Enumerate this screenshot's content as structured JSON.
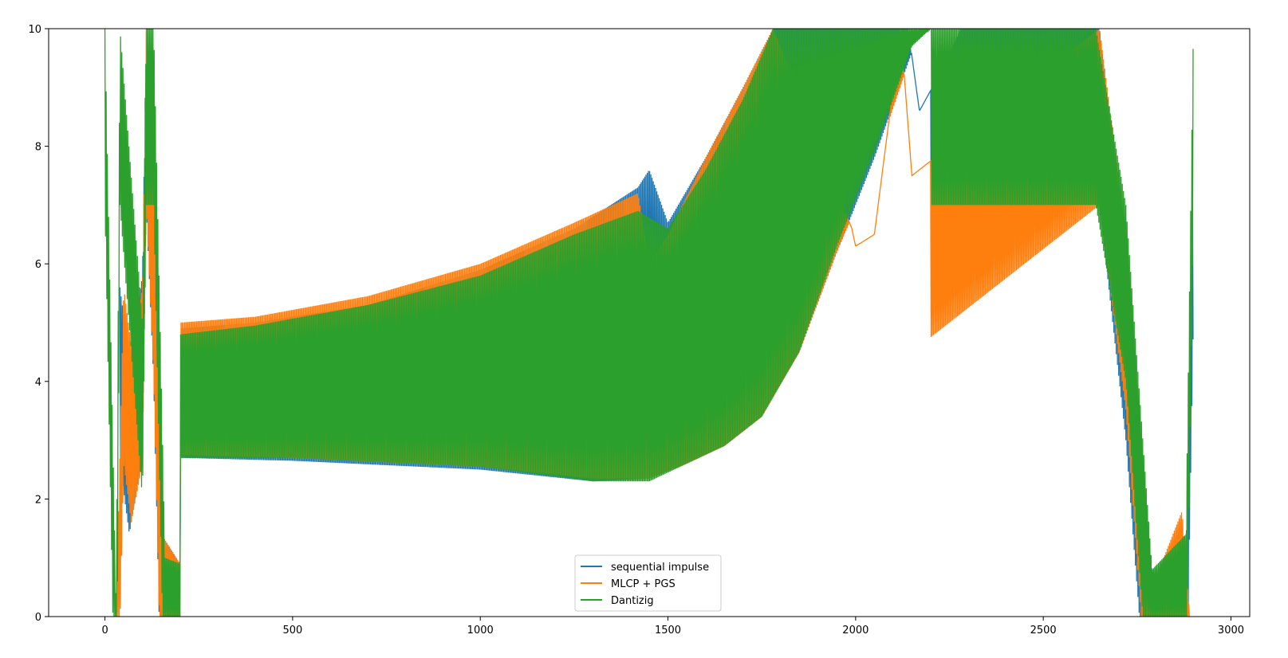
{
  "chart_data": {
    "type": "line",
    "title": "",
    "xlabel": "",
    "ylabel": "",
    "xlim": [
      -150,
      3050
    ],
    "ylim": [
      0,
      10
    ],
    "x_ticks": [
      0,
      500,
      1000,
      1500,
      2000,
      2500,
      3000
    ],
    "y_ticks": [
      0,
      2,
      4,
      6,
      8,
      10
    ],
    "grid": false,
    "legend_position": "bottom-center",
    "series": [
      {
        "name": "sequential impulse",
        "color": "#1f77b4",
        "band_upper": [
          [
            40,
            5.6
          ],
          [
            65,
            4.4
          ],
          [
            100,
            5.8
          ],
          [
            110,
            10
          ],
          [
            130,
            7
          ],
          [
            150,
            1.4
          ],
          [
            200,
            0.9
          ],
          [
            200,
            4.9
          ],
          [
            400,
            5.0
          ],
          [
            700,
            5.3
          ],
          [
            1000,
            5.9
          ],
          [
            1250,
            6.6
          ],
          [
            1420,
            7.3
          ],
          [
            1450,
            7.6
          ],
          [
            1500,
            6.7
          ],
          [
            1600,
            7.8
          ],
          [
            1700,
            9.0
          ],
          [
            1780,
            10
          ],
          [
            2140,
            10
          ],
          [
            2170,
            8.6
          ],
          [
            2230,
            9.3
          ],
          [
            2280,
            10
          ],
          [
            2650,
            10
          ],
          [
            2720,
            6.0
          ],
          [
            2780,
            1.0
          ],
          [
            2800,
            0.6
          ],
          [
            2880,
            0.9
          ],
          [
            2900,
            8.0
          ]
        ],
        "band_lower": [
          [
            200,
            2.7
          ],
          [
            500,
            2.65
          ],
          [
            1000,
            2.5
          ],
          [
            1300,
            2.3
          ],
          [
            1450,
            2.35
          ],
          [
            1550,
            2.65
          ],
          [
            1650,
            2.9
          ],
          [
            1750,
            3.4
          ],
          [
            1850,
            4.5
          ],
          [
            1950,
            6.2
          ],
          [
            2050,
            7.8
          ],
          [
            2150,
            9.6
          ],
          [
            2200,
            10
          ]
        ]
      },
      {
        "name": "MLCP + PGS",
        "color": "#ff7f0e",
        "band_upper": [
          [
            30,
            0
          ],
          [
            50,
            5.6
          ],
          [
            70,
            4.6
          ],
          [
            100,
            5.6
          ],
          [
            110,
            10
          ],
          [
            130,
            7
          ],
          [
            150,
            1.4
          ],
          [
            200,
            0.9
          ],
          [
            200,
            5.0
          ],
          [
            400,
            5.1
          ],
          [
            700,
            5.45
          ],
          [
            1000,
            6.0
          ],
          [
            1250,
            6.7
          ],
          [
            1420,
            7.2
          ],
          [
            1450,
            6.0
          ],
          [
            1500,
            6.5
          ],
          [
            1600,
            7.8
          ],
          [
            1700,
            9.0
          ],
          [
            1780,
            10
          ],
          [
            2120,
            10
          ],
          [
            2150,
            7.5
          ],
          [
            2050,
            6.5
          ],
          [
            2000,
            6.3
          ],
          [
            1990,
            6.6
          ],
          [
            2650,
            10
          ],
          [
            2720,
            6.5
          ],
          [
            2790,
            0.5
          ],
          [
            2870,
            1.8
          ],
          [
            2890,
            0
          ]
        ],
        "band_lower": [
          [
            200,
            2.75
          ],
          [
            500,
            2.7
          ],
          [
            1000,
            2.55
          ],
          [
            1300,
            2.35
          ],
          [
            1450,
            2.35
          ],
          [
            1550,
            2.6
          ],
          [
            1650,
            2.9
          ],
          [
            1750,
            3.4
          ],
          [
            1850,
            4.5
          ],
          [
            1950,
            6.2
          ],
          [
            2050,
            7.7
          ],
          [
            2150,
            9.6
          ],
          [
            2200,
            10
          ]
        ]
      },
      {
        "name": "Dantizig",
        "color": "#2ca02c",
        "band_upper": [
          [
            0,
            10
          ],
          [
            30,
            0
          ],
          [
            40,
            10
          ],
          [
            100,
            5.0
          ],
          [
            110,
            10
          ],
          [
            130,
            10
          ],
          [
            160,
            1.0
          ],
          [
            200,
            0.9
          ],
          [
            200,
            4.8
          ],
          [
            400,
            4.95
          ],
          [
            700,
            5.3
          ],
          [
            1000,
            5.8
          ],
          [
            1250,
            6.5
          ],
          [
            1420,
            6.9
          ],
          [
            1500,
            6.6
          ],
          [
            1600,
            7.6
          ],
          [
            1700,
            8.8
          ],
          [
            1780,
            10
          ],
          [
            2280,
            10
          ],
          [
            2640,
            10
          ],
          [
            2720,
            7.0
          ],
          [
            2790,
            0.8
          ],
          [
            2880,
            1.4
          ],
          [
            2900,
            10
          ]
        ],
        "band_lower": [
          [
            200,
            2.7
          ],
          [
            500,
            2.7
          ],
          [
            1000,
            2.55
          ],
          [
            1300,
            2.3
          ],
          [
            1450,
            2.3
          ],
          [
            1550,
            2.6
          ],
          [
            1650,
            2.9
          ],
          [
            1750,
            3.4
          ],
          [
            1850,
            4.5
          ],
          [
            1950,
            6.3
          ],
          [
            2050,
            7.9
          ],
          [
            2150,
            9.7
          ],
          [
            2200,
            10
          ]
        ]
      }
    ]
  }
}
